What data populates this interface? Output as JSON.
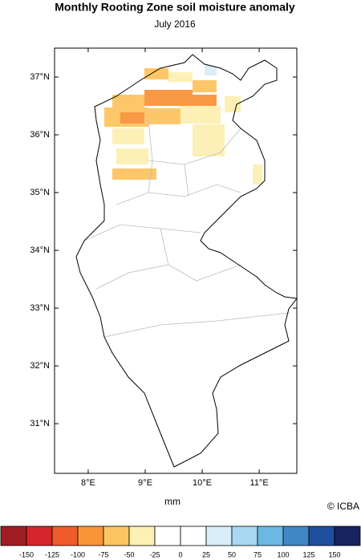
{
  "title": "Monthly Rooting Zone soil moisture anomaly",
  "subtitle": "July 2016",
  "map": {
    "xlim": [
      7.41,
      11.66
    ],
    "ylim": [
      30.14,
      37.5
    ],
    "xticks": [
      {
        "value": 8,
        "label": "8°E"
      },
      {
        "value": 9,
        "label": "9°E"
      },
      {
        "value": 10,
        "label": "10°E"
      },
      {
        "value": 11,
        "label": "11°E"
      }
    ],
    "yticks": [
      {
        "value": 31,
        "label": "31°N"
      },
      {
        "value": 32,
        "label": "32°N"
      },
      {
        "value": 33,
        "label": "33°N"
      },
      {
        "value": 34,
        "label": "34°N"
      },
      {
        "value": 35,
        "label": "35°N"
      },
      {
        "value": 36,
        "label": "36°N"
      },
      {
        "value": 37,
        "label": "37°N"
      }
    ]
  },
  "unit": "mm",
  "credit": "© ICBA",
  "colorbar": {
    "colors": [
      "#a11d24",
      "#d7262b",
      "#ef5b2b",
      "#f99439",
      "#fdc561",
      "#fdf0b3",
      "#ffffff",
      "#ffffff",
      "#d9eef8",
      "#a8d8f2",
      "#6cb8e4",
      "#3f87c6",
      "#1f4f9e",
      "#17245f"
    ],
    "ticks": [
      -150,
      -125,
      -100,
      -75,
      -50,
      -25,
      0,
      25,
      50,
      75,
      100,
      125,
      150
    ]
  }
}
